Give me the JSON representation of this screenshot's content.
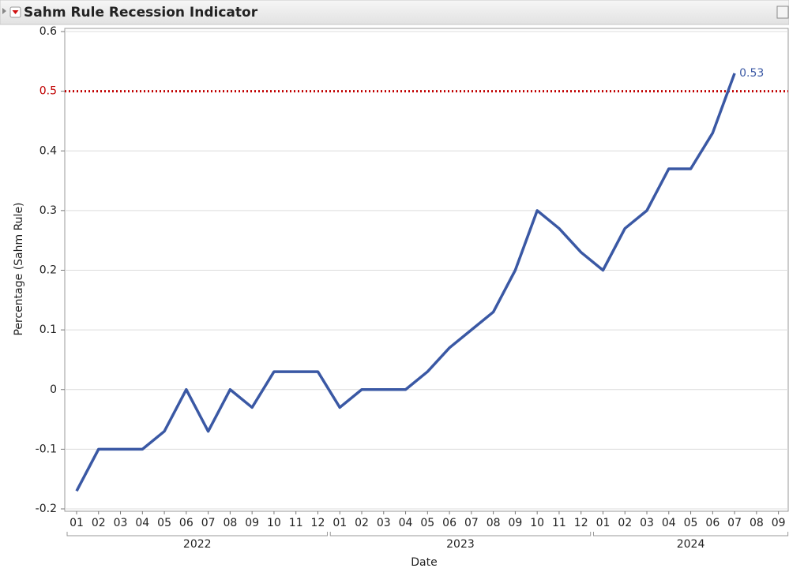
{
  "chart_data": {
    "type": "line",
    "title": "Sahm Rule Recession Indicator",
    "x_label": "Date",
    "y_label": "Percentage (Sahm Rule)",
    "categories": [
      "01",
      "02",
      "03",
      "04",
      "05",
      "06",
      "07",
      "08",
      "09",
      "10",
      "11",
      "12",
      "01",
      "02",
      "03",
      "04",
      "05",
      "06",
      "07",
      "08",
      "09",
      "10",
      "11",
      "12",
      "01",
      "02",
      "03",
      "04",
      "05",
      "06",
      "07",
      "08",
      "09"
    ],
    "years": [
      "2022",
      "2023",
      "2024"
    ],
    "series": [
      {
        "name": "Sahm Rule",
        "color": "#3a58a4",
        "values": [
          -0.17,
          -0.1,
          -0.1,
          -0.1,
          -0.07,
          0,
          -0.07,
          0,
          -0.03,
          0.03,
          0.03,
          0.03,
          -0.03,
          0,
          0,
          0,
          0.03,
          0.07,
          0.1,
          0.13,
          0.2,
          0.3,
          0.27,
          0.23,
          0.2,
          0.27,
          0.3,
          0.37,
          0.37,
          0.43,
          0.53,
          null,
          null
        ]
      }
    ],
    "last_value_label": true,
    "reference_line": {
      "value": 0.5,
      "color": "#c00000"
    },
    "ylim": [
      -0.2,
      0.6
    ],
    "yticks": [
      -0.2,
      -0.1,
      0,
      0.1,
      0.2,
      0.3,
      0.4,
      0.5,
      0.6
    ],
    "grid": true
  }
}
